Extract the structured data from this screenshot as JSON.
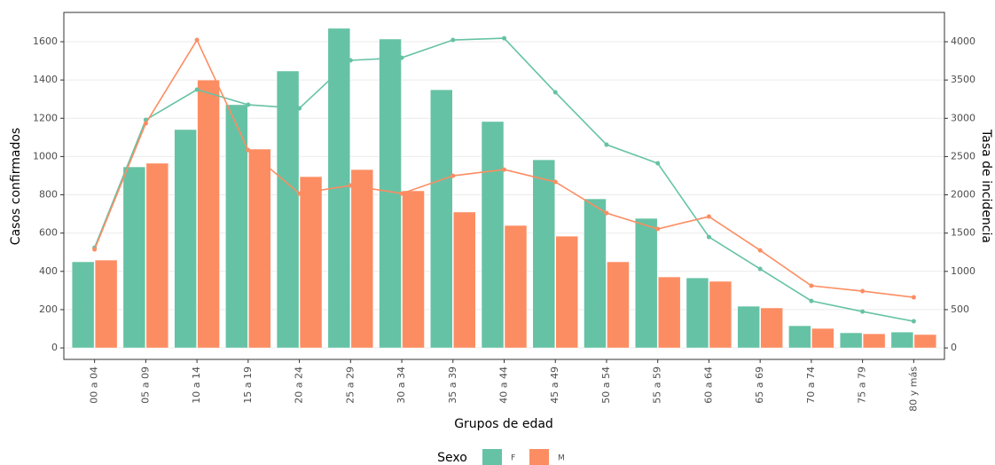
{
  "chart_data": {
    "type": "bar-line",
    "x_label": "Grupos de edad",
    "y_label": "Casos confirmados",
    "y2_label": "Tasa de incidencia",
    "legend_title": "Sexo",
    "categories": [
      "00 a 04",
      "05 a 09",
      "10 a 14",
      "15 a 19",
      "20 a 24",
      "25 a 29",
      "30 a 34",
      "35 a 39",
      "40 a 44",
      "45 a 49",
      "50 a 54",
      "55 a 59",
      "60 a 64",
      "65 a 69",
      "70 a 74",
      "75 a 79",
      "80 y más"
    ],
    "series": [
      {
        "name": "F",
        "type": "bar",
        "color": "#66c2a5",
        "values": [
          450,
          946,
          1141,
          1271,
          1447,
          1670,
          1614,
          1349,
          1183,
          983,
          779,
          677,
          366,
          218,
          116,
          79,
          83
        ]
      },
      {
        "name": "M",
        "type": "bar",
        "color": "#fc8d62",
        "values": [
          459,
          965,
          1400,
          1039,
          895,
          932,
          821,
          710,
          640,
          584,
          450,
          371,
          348,
          209,
          102,
          74,
          70
        ]
      },
      {
        "name": "F",
        "type": "line",
        "axis": "y2",
        "color": "#66c2a5",
        "values": [
          1310,
          2980,
          3374,
          3177,
          3130,
          3757,
          3791,
          4023,
          4046,
          3339,
          2655,
          2412,
          1449,
          1032,
          614,
          475,
          348
        ]
      },
      {
        "name": "M",
        "type": "line",
        "axis": "y2",
        "color": "#fc8d62",
        "values": [
          1287,
          2933,
          4023,
          2585,
          2017,
          2122,
          2017,
          2249,
          2330,
          2168,
          1762,
          1554,
          1716,
          1275,
          812,
          742,
          661
        ]
      }
    ],
    "ylim": [
      -60,
      1753
    ],
    "yticks": [
      0,
      200,
      400,
      600,
      800,
      1000,
      1200,
      1400,
      1600
    ],
    "y2lim": [
      -150,
      4383
    ],
    "y2ticks": [
      0,
      500,
      1000,
      1500,
      2000,
      2500,
      3000,
      3500,
      4000
    ],
    "grid": true,
    "legend_position": "bottom"
  }
}
